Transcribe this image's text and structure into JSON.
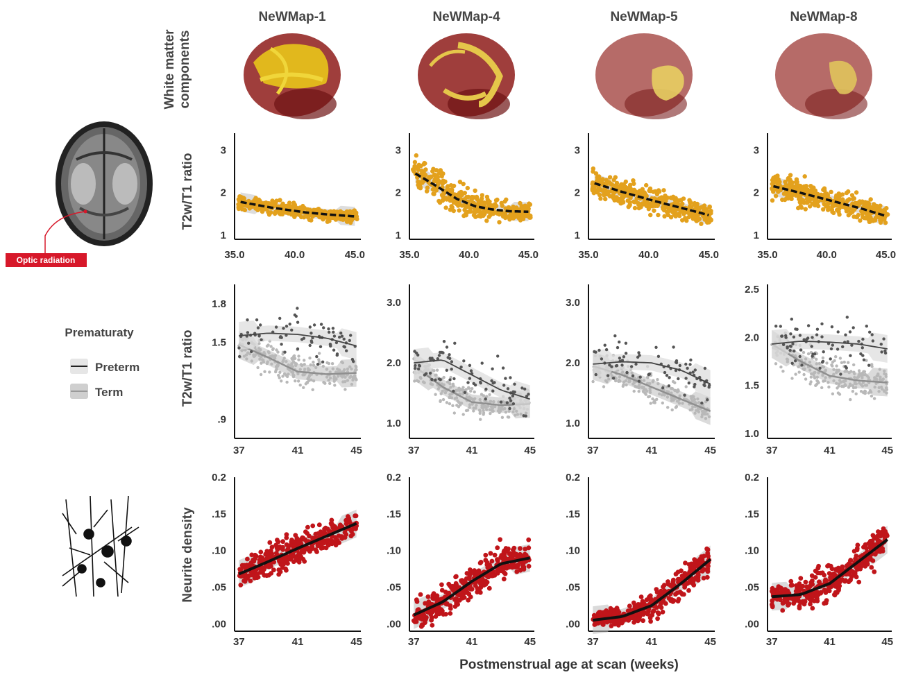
{
  "figure": {
    "column_titles": [
      "NeWMap-1",
      "NeWMap-4",
      "NeWMap-5",
      "NeWMap-8"
    ],
    "row_labels": {
      "brains": "White matter components",
      "brains_lines": [
        "White matter",
        "components"
      ],
      "ratio": "T2w/T1 ratio",
      "neurite": "Neurite density"
    },
    "x_axis_label": "Postmenstrual age at scan (weeks)",
    "optic_label": "Optic radiation",
    "legend": {
      "title": "Prematuraty",
      "items": [
        "Preterm",
        "Term"
      ]
    },
    "icons": [
      "axial-mri-brain-icon",
      "neuron-tree-icon",
      "brain-render-icon"
    ]
  },
  "colors": {
    "gold": "#E3A11D",
    "red": "#C0151A",
    "preterm": "#333333",
    "term": "#AAAAAA",
    "badge": "#D7182A"
  },
  "chart_data": [
    {
      "row": "ratio_all",
      "type": "scatter",
      "panel": "NeWMap-1",
      "xlim": [
        35,
        45.5
      ],
      "ylim": [
        0.9,
        3.4
      ],
      "xticks": [
        "35.0",
        "40.0",
        "45.0"
      ],
      "yticks": [
        "1",
        "2",
        "3"
      ],
      "fit": [
        [
          35.5,
          1.78
        ],
        [
          38,
          1.65
        ],
        [
          41,
          1.53
        ],
        [
          43,
          1.48
        ],
        [
          45,
          1.44
        ]
      ],
      "cloud": [
        [
          35.5,
          1.7,
          0.15
        ],
        [
          38,
          1.6,
          0.15
        ],
        [
          41,
          1.5,
          0.16
        ],
        [
          44,
          1.45,
          0.12
        ]
      ]
    },
    {
      "row": "ratio_all",
      "type": "scatter",
      "panel": "NeWMap-4",
      "xlim": [
        35,
        45.5
      ],
      "ylim": [
        0.9,
        3.4
      ],
      "xticks": [
        "35.0",
        "40.0",
        "45.0"
      ],
      "yticks": [
        "1",
        "2",
        "3"
      ],
      "fit": [
        [
          35.5,
          2.45
        ],
        [
          37,
          2.2
        ],
        [
          39,
          1.85
        ],
        [
          40.5,
          1.68
        ],
        [
          42,
          1.6
        ],
        [
          43.5,
          1.56
        ],
        [
          45,
          1.55
        ]
      ],
      "cloud": [
        [
          35.5,
          2.5,
          0.35
        ],
        [
          37,
          2.2,
          0.35
        ],
        [
          39,
          1.9,
          0.35
        ],
        [
          41,
          1.65,
          0.28
        ],
        [
          44,
          1.55,
          0.2
        ]
      ]
    },
    {
      "row": "ratio_all",
      "type": "scatter",
      "panel": "NeWMap-5",
      "xlim": [
        35,
        45.5
      ],
      "ylim": [
        0.9,
        3.4
      ],
      "xticks": [
        "35.0",
        "40.0",
        "45.0"
      ],
      "yticks": [
        "1",
        "2",
        "3"
      ],
      "fit": [
        [
          35.5,
          2.22
        ],
        [
          38,
          2.0
        ],
        [
          40.5,
          1.8
        ],
        [
          43,
          1.62
        ],
        [
          45,
          1.47
        ]
      ],
      "cloud": [
        [
          35.5,
          2.2,
          0.3
        ],
        [
          38,
          2.0,
          0.3
        ],
        [
          41,
          1.75,
          0.3
        ],
        [
          44,
          1.55,
          0.25
        ]
      ]
    },
    {
      "row": "ratio_all",
      "type": "scatter",
      "panel": "NeWMap-8",
      "xlim": [
        35,
        45.5
      ],
      "ylim": [
        0.9,
        3.4
      ],
      "xticks": [
        "35.0",
        "40.0",
        "45.0"
      ],
      "yticks": [
        "1",
        "2",
        "3"
      ],
      "fit": [
        [
          35.5,
          2.15
        ],
        [
          38,
          1.98
        ],
        [
          40.5,
          1.8
        ],
        [
          43,
          1.62
        ],
        [
          45,
          1.45
        ]
      ],
      "cloud": [
        [
          35.5,
          2.1,
          0.28
        ],
        [
          38,
          1.95,
          0.28
        ],
        [
          41,
          1.75,
          0.28
        ],
        [
          44,
          1.55,
          0.22
        ]
      ]
    },
    {
      "row": "ratio_group",
      "type": "scatter",
      "panel": "NeWMap-1",
      "xlim": [
        36.7,
        45.3
      ],
      "ylim": [
        0.75,
        1.95
      ],
      "xticks": [
        "37",
        "41",
        "45"
      ],
      "ytick_values": [
        0.9,
        1.5,
        1.8
      ],
      "yticks": [
        ".9",
        "1.5",
        "1.8"
      ],
      "preterm_fit": [
        [
          37,
          1.55
        ],
        [
          39,
          1.57
        ],
        [
          41,
          1.56
        ],
        [
          43,
          1.53
        ],
        [
          45,
          1.47
        ]
      ],
      "term_fit": [
        [
          37,
          1.48
        ],
        [
          39,
          1.38
        ],
        [
          41,
          1.27
        ],
        [
          43,
          1.25
        ],
        [
          45,
          1.26
        ]
      ],
      "preterm_cloud": [
        [
          37,
          1.55,
          0.18
        ],
        [
          41,
          1.6,
          0.18
        ],
        [
          44,
          1.5,
          0.15
        ]
      ],
      "term_cloud": [
        [
          37,
          1.45,
          0.12
        ],
        [
          41,
          1.25,
          0.12
        ],
        [
          44,
          1.25,
          0.1
        ]
      ]
    },
    {
      "row": "ratio_group",
      "type": "scatter",
      "panel": "NeWMap-4",
      "xlim": [
        36.7,
        45.3
      ],
      "ylim": [
        0.75,
        3.3
      ],
      "xticks": [
        "37",
        "41",
        "45"
      ],
      "ytick_values": [
        1.0,
        2.0,
        3.0
      ],
      "yticks": [
        "1.0",
        "2.0",
        "3.0"
      ],
      "preterm_fit": [
        [
          37,
          2.0
        ],
        [
          39,
          2.05
        ],
        [
          41,
          1.8
        ],
        [
          43,
          1.55
        ],
        [
          45,
          1.4
        ]
      ],
      "term_fit": [
        [
          37,
          1.95
        ],
        [
          39,
          1.6
        ],
        [
          41,
          1.35
        ],
        [
          43,
          1.3
        ],
        [
          45,
          1.32
        ]
      ],
      "preterm_cloud": [
        [
          37,
          2.1,
          0.4
        ],
        [
          41,
          1.9,
          0.4
        ],
        [
          44,
          1.6,
          0.35
        ]
      ],
      "term_cloud": [
        [
          37,
          1.85,
          0.25
        ],
        [
          41,
          1.4,
          0.25
        ],
        [
          44,
          1.3,
          0.2
        ]
      ]
    },
    {
      "row": "ratio_group",
      "type": "scatter",
      "panel": "NeWMap-5",
      "xlim": [
        36.7,
        45.3
      ],
      "ylim": [
        0.75,
        3.3
      ],
      "xticks": [
        "37",
        "41",
        "45"
      ],
      "ytick_values": [
        1.0,
        2.0,
        3.0
      ],
      "yticks": [
        "1.0",
        "2.0",
        "3.0"
      ],
      "preterm_fit": [
        [
          37,
          1.98
        ],
        [
          39,
          2.02
        ],
        [
          41,
          2.0
        ],
        [
          43,
          1.88
        ],
        [
          45,
          1.65
        ]
      ],
      "term_fit": [
        [
          37,
          1.95
        ],
        [
          39,
          1.8
        ],
        [
          41,
          1.6
        ],
        [
          43,
          1.4
        ],
        [
          45,
          1.2
        ]
      ],
      "preterm_cloud": [
        [
          37,
          2.0,
          0.35
        ],
        [
          41,
          2.0,
          0.35
        ],
        [
          44,
          1.8,
          0.35
        ]
      ],
      "term_cloud": [
        [
          37,
          1.9,
          0.25
        ],
        [
          41,
          1.55,
          0.25
        ],
        [
          44,
          1.3,
          0.2
        ]
      ]
    },
    {
      "row": "ratio_group",
      "type": "scatter",
      "panel": "NeWMap-8",
      "xlim": [
        36.7,
        45.3
      ],
      "ylim": [
        0.95,
        2.55
      ],
      "xticks": [
        "37",
        "41",
        "45"
      ],
      "ytick_values": [
        1.0,
        1.5,
        2.0,
        2.5
      ],
      "yticks": [
        "1.0",
        "1.5",
        "2.0",
        "2.5"
      ],
      "preterm_fit": [
        [
          37,
          1.93
        ],
        [
          39,
          1.96
        ],
        [
          41,
          1.95
        ],
        [
          43,
          1.93
        ],
        [
          45,
          1.88
        ]
      ],
      "term_fit": [
        [
          37,
          1.93
        ],
        [
          39,
          1.75
        ],
        [
          41,
          1.6
        ],
        [
          43,
          1.55
        ],
        [
          45,
          1.53
        ]
      ],
      "preterm_cloud": [
        [
          37,
          2.0,
          0.25
        ],
        [
          41,
          2.0,
          0.25
        ],
        [
          44,
          1.95,
          0.22
        ]
      ],
      "term_cloud": [
        [
          37,
          1.85,
          0.2
        ],
        [
          41,
          1.6,
          0.2
        ],
        [
          44,
          1.5,
          0.15
        ]
      ]
    },
    {
      "row": "neurite",
      "type": "scatter",
      "panel": "NeWMap-1",
      "xlim": [
        36.7,
        45.3
      ],
      "ylim": [
        -0.01,
        0.2
      ],
      "xticks": [
        "37",
        "41",
        "45"
      ],
      "ytick_values": [
        0.0,
        0.05,
        0.1,
        0.15,
        0.2
      ],
      "yticks": [
        ".00",
        ".05",
        ".10",
        ".15",
        "0.2"
      ],
      "fit": [
        [
          37,
          0.068
        ],
        [
          39,
          0.085
        ],
        [
          41,
          0.103
        ],
        [
          43,
          0.12
        ],
        [
          45,
          0.137
        ]
      ],
      "cloud": [
        [
          37,
          0.068,
          0.018
        ],
        [
          39,
          0.085,
          0.02
        ],
        [
          41,
          0.103,
          0.022
        ],
        [
          43,
          0.12,
          0.02
        ],
        [
          45,
          0.135,
          0.018
        ]
      ]
    },
    {
      "row": "neurite",
      "type": "scatter",
      "panel": "NeWMap-4",
      "xlim": [
        36.7,
        45.3
      ],
      "ylim": [
        -0.01,
        0.2
      ],
      "xticks": [
        "37",
        "41",
        "45"
      ],
      "ytick_values": [
        0.0,
        0.05,
        0.1,
        0.15,
        0.2
      ],
      "yticks": [
        ".00",
        ".05",
        ".10",
        ".15",
        "0.2"
      ],
      "fit": [
        [
          37,
          0.012
        ],
        [
          39,
          0.03
        ],
        [
          41,
          0.058
        ],
        [
          43,
          0.082
        ],
        [
          45,
          0.09
        ]
      ],
      "cloud": [
        [
          37,
          0.015,
          0.015
        ],
        [
          39,
          0.03,
          0.02
        ],
        [
          41,
          0.058,
          0.022
        ],
        [
          43,
          0.082,
          0.022
        ],
        [
          45,
          0.09,
          0.022
        ]
      ]
    },
    {
      "row": "neurite",
      "type": "scatter",
      "panel": "NeWMap-5",
      "xlim": [
        36.7,
        45.3
      ],
      "ylim": [
        -0.01,
        0.2
      ],
      "xticks": [
        "37",
        "41",
        "45"
      ],
      "ytick_values": [
        0.0,
        0.05,
        0.1,
        0.15,
        0.2
      ],
      "yticks": [
        ".00",
        ".05",
        ".10",
        ".15",
        "0.2"
      ],
      "fit": [
        [
          37,
          0.005
        ],
        [
          39,
          0.01
        ],
        [
          41,
          0.025
        ],
        [
          43,
          0.055
        ],
        [
          45,
          0.088
        ]
      ],
      "cloud": [
        [
          37,
          0.008,
          0.01
        ],
        [
          39,
          0.012,
          0.012
        ],
        [
          41,
          0.025,
          0.018
        ],
        [
          43,
          0.055,
          0.022
        ],
        [
          45,
          0.085,
          0.025
        ]
      ]
    },
    {
      "row": "neurite",
      "type": "scatter",
      "panel": "NeWMap-8",
      "xlim": [
        36.7,
        45.3
      ],
      "ylim": [
        -0.01,
        0.2
      ],
      "xticks": [
        "37",
        "41",
        "45"
      ],
      "ytick_values": [
        0.0,
        0.05,
        0.1,
        0.15,
        0.2
      ],
      "yticks": [
        ".00",
        ".05",
        ".10",
        ".15",
        "0.2"
      ],
      "fit": [
        [
          37,
          0.037
        ],
        [
          39,
          0.04
        ],
        [
          41,
          0.055
        ],
        [
          43,
          0.085
        ],
        [
          45,
          0.115
        ]
      ],
      "cloud": [
        [
          37,
          0.04,
          0.015
        ],
        [
          39,
          0.042,
          0.018
        ],
        [
          41,
          0.058,
          0.022
        ],
        [
          43,
          0.085,
          0.025
        ],
        [
          45,
          0.11,
          0.025
        ]
      ]
    }
  ]
}
